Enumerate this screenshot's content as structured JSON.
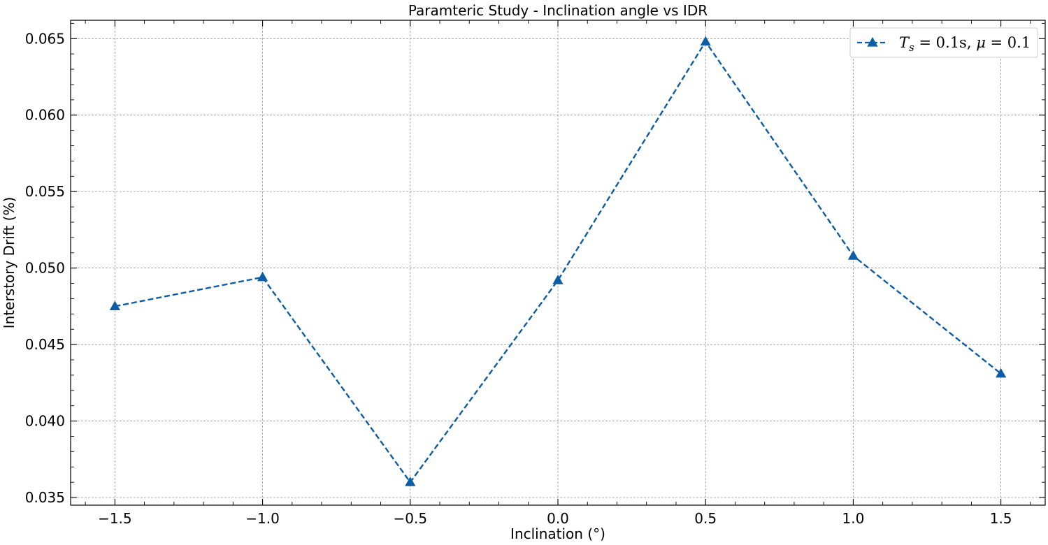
{
  "chart_data": {
    "type": "line",
    "title": "Paramteric Study - Inclination angle vs IDR",
    "xlabel": "Inclination (°)",
    "ylabel": "Interstory Drift (%)",
    "xlim": [
      -1.65,
      1.65
    ],
    "ylim": [
      0.0345,
      0.0662
    ],
    "x_ticks": [
      -1.5,
      -1.0,
      -0.5,
      0.0,
      0.5,
      1.0,
      1.5
    ],
    "x_tick_labels": [
      "−1.5",
      "−1.0",
      "−0.5",
      "0.0",
      "0.5",
      "1.0",
      "1.5"
    ],
    "y_ticks": [
      0.035,
      0.04,
      0.045,
      0.05,
      0.055,
      0.06,
      0.065
    ],
    "y_tick_labels": [
      "0.035",
      "0.040",
      "0.045",
      "0.050",
      "0.055",
      "0.060",
      "0.065"
    ],
    "x_minor_step": 0.1,
    "y_minor_step": 0.001,
    "grid": true,
    "legend_position": "top-right",
    "series": [
      {
        "name": "T_s = 0.1s, μ = 0.1",
        "legend_parts": {
          "t": "T",
          "sub": "s",
          "eq1": " = 0.1s, ",
          "mu": "μ",
          "eq2": " = 0.1"
        },
        "color": "#0c5da5",
        "line_style": "dashed",
        "marker": "triangle",
        "x": [
          -1.5,
          -1.0,
          -0.5,
          0.0,
          0.5,
          1.0,
          1.5
        ],
        "y": [
          0.0475,
          0.0494,
          0.036,
          0.0492,
          0.0648,
          0.0508,
          0.0431
        ]
      }
    ]
  }
}
